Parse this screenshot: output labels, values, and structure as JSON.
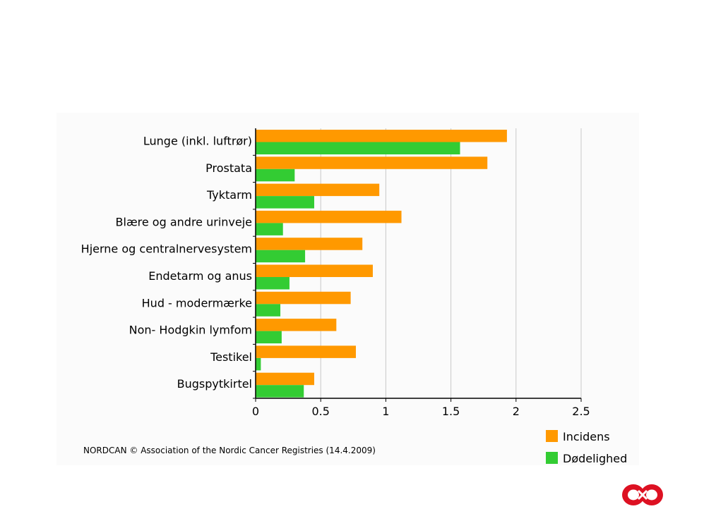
{
  "chart_data": {
    "type": "bar",
    "orientation": "horizontal",
    "categories": [
      "Lunge (inkl. luftrør)",
      "Prostata",
      "Tyktarm",
      "Blære og andre urinveje",
      "Hjerne og centralnervesystem",
      "Endetarm og anus",
      "Hud - modermærke",
      "Non- Hodgkin lymfom",
      "Testikel",
      "Bugspytkirtel"
    ],
    "series": [
      {
        "name": "Incidens",
        "color": "#ff9900",
        "values": [
          1.93,
          1.78,
          0.95,
          1.12,
          0.82,
          0.9,
          0.73,
          0.62,
          0.77,
          0.45
        ]
      },
      {
        "name": "Dødelighed",
        "color": "#33cc33",
        "values": [
          1.57,
          0.3,
          0.45,
          0.21,
          0.38,
          0.26,
          0.19,
          0.2,
          0.04,
          0.37
        ]
      }
    ],
    "xlim": [
      0,
      2.5
    ],
    "xticks": [
      "0",
      "0.5",
      "1",
      "1.5",
      "2",
      "2.5"
    ],
    "grid": true,
    "legend_placement": "bottom-right"
  },
  "footer": {
    "source": "NORDCAN © Association of the Nordic Cancer Registries (14.4.2009)"
  },
  "logo": {
    "color": "#dd1122",
    "icon": "infinity-logo-icon"
  }
}
